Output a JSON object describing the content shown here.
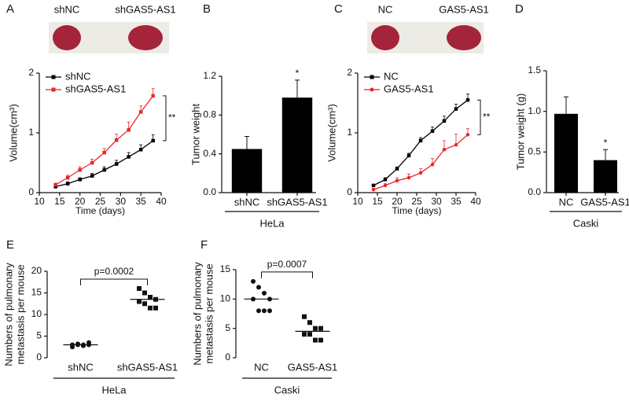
{
  "chart_data": [
    {
      "panel": "A",
      "type": "line",
      "photo_labels": [
        "shNC",
        "shGAS5-AS1"
      ],
      "x": [
        14,
        17,
        20,
        23,
        26,
        29,
        32,
        35,
        38
      ],
      "series": [
        {
          "name": "shNC",
          "color": "#000000",
          "marker": "square",
          "values": [
            0.1,
            0.15,
            0.22,
            0.28,
            0.38,
            0.48,
            0.6,
            0.72,
            0.87
          ],
          "errors": [
            0.02,
            0.03,
            0.03,
            0.04,
            0.05,
            0.06,
            0.07,
            0.08,
            0.1
          ]
        },
        {
          "name": "shGAS5-AS1",
          "color": "#e8262b",
          "marker": "square",
          "values": [
            0.13,
            0.25,
            0.38,
            0.5,
            0.67,
            0.88,
            1.05,
            1.35,
            1.62
          ],
          "errors": [
            0.03,
            0.04,
            0.05,
            0.06,
            0.07,
            0.1,
            0.13,
            0.1,
            0.12
          ]
        }
      ],
      "x_label": "Time (days)",
      "y_label": "Volume(cm³)",
      "xlim": [
        10,
        40
      ],
      "ylim": [
        0,
        2
      ],
      "xticks": [
        10,
        15,
        20,
        25,
        30,
        35,
        40
      ],
      "yticks": [
        0,
        1,
        2
      ],
      "legend": "upper left",
      "annotation": "**"
    },
    {
      "panel": "B",
      "type": "bar",
      "categories": [
        "shNC",
        "shGAS5-AS1"
      ],
      "values": [
        0.45,
        0.98
      ],
      "errors": [
        0.13,
        0.18
      ],
      "color": "#000000",
      "y_label": "Tumor weight",
      "ylim": [
        0,
        1.2
      ],
      "yticks": [
        {
          "value": 0,
          "label": "0.0"
        },
        0.4,
        0.8,
        1.2
      ],
      "annotation": "*",
      "group_label": "HeLa"
    },
    {
      "panel": "C",
      "type": "line",
      "photo_labels": [
        "NC",
        "GAS5-AS1"
      ],
      "x": [
        14,
        17,
        20,
        23,
        26,
        29,
        32,
        35,
        38
      ],
      "series": [
        {
          "name": "NC",
          "color": "#000000",
          "marker": "square",
          "values": [
            0.12,
            0.22,
            0.4,
            0.62,
            0.87,
            1.03,
            1.2,
            1.4,
            1.55
          ],
          "errors": [
            0.02,
            0.03,
            0.03,
            0.04,
            0.05,
            0.07,
            0.08,
            0.08,
            0.1
          ]
        },
        {
          "name": "GAS5-AS1",
          "color": "#e8262b",
          "marker": "circle",
          "values": [
            0.05,
            0.12,
            0.2,
            0.25,
            0.33,
            0.47,
            0.72,
            0.8,
            0.97
          ],
          "errors": [
            0.02,
            0.03,
            0.05,
            0.06,
            0.07,
            0.1,
            0.15,
            0.18,
            0.1
          ]
        }
      ],
      "x_label": "Time (days)",
      "y_label": "Volume(cm³)",
      "xlim": [
        10,
        40
      ],
      "ylim": [
        0,
        2
      ],
      "xticks": [
        10,
        15,
        20,
        25,
        30,
        35,
        40
      ],
      "yticks": [
        0,
        1,
        2
      ],
      "legend": "upper left",
      "annotation": "**"
    },
    {
      "panel": "D",
      "type": "bar",
      "categories": [
        "NC",
        "GAS5-AS1"
      ],
      "values": [
        0.97,
        0.4
      ],
      "errors": [
        0.21,
        0.13
      ],
      "color": "#000000",
      "y_label": "Tumor weight (g)",
      "ylim": [
        0,
        1.5
      ],
      "yticks": [
        {
          "value": 0,
          "label": "0.0"
        },
        0.5,
        {
          "value": 1,
          "label": "1.0"
        },
        1.5
      ],
      "annotation": "*",
      "group_label": "Caski"
    },
    {
      "panel": "E",
      "type": "strip",
      "categories": [
        "shNC",
        "shGAS5-AS1"
      ],
      "markers": [
        "circle",
        "square"
      ],
      "values": [
        [
          2.5,
          3,
          3,
          3.5,
          3,
          3.2,
          2.8,
          3
        ],
        [
          16,
          15,
          14,
          13.5,
          13,
          12.5,
          11.5,
          11.5
        ]
      ],
      "means": [
        3,
        13.5
      ],
      "y_label": [
        "Numbers of pulmonary",
        "metastasis per mouse"
      ],
      "ylim": [
        0,
        20
      ],
      "yticks": [
        0,
        5,
        10,
        15,
        20
      ],
      "annotation": "p=0.0002",
      "group_label": "HeLa"
    },
    {
      "panel": "F",
      "type": "strip",
      "categories": [
        "NC",
        "GAS5-AS1"
      ],
      "markers": [
        "circle",
        "square"
      ],
      "values": [
        [
          13,
          12,
          11,
          10,
          10,
          8,
          8,
          8
        ],
        [
          7,
          6,
          5,
          5,
          4,
          4,
          3,
          3
        ]
      ],
      "means": [
        10,
        4.5
      ],
      "y_label": [
        "Numbers of pulmonary",
        "metastasis per mouse"
      ],
      "ylim": [
        0,
        15
      ],
      "yticks": [
        0,
        5,
        10,
        15
      ],
      "annotation": "p=0.0007",
      "group_label": "Caski"
    }
  ]
}
